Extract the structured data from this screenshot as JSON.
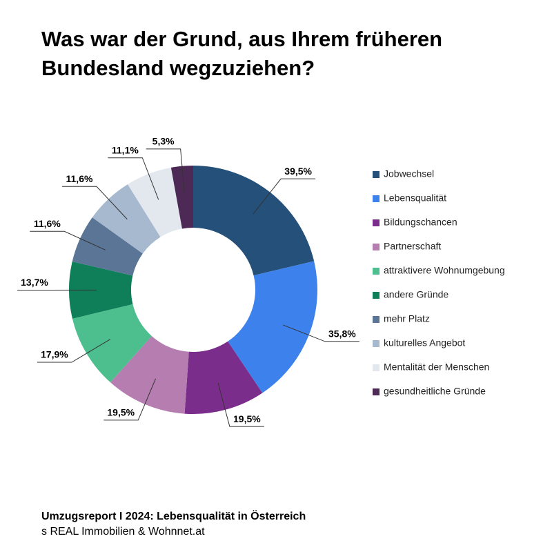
{
  "chart_data": {
    "type": "donut",
    "title": "Was war der Grund, aus Ihrem früheren Bundesland wegzuziehen?",
    "categories": [
      "Jobwechsel",
      "Lebensqualität",
      "Bildungschancen",
      "Partnerschaft",
      "attraktivere Wohnumgebung",
      "andere Gründe",
      "mehr Platz",
      "kulturelles Angebot",
      "Mentalität der Menschen",
      "gesundheitliche Gründe"
    ],
    "values": [
      39.5,
      35.8,
      19.5,
      19.5,
      17.9,
      13.7,
      11.6,
      11.6,
      11.1,
      5.3
    ],
    "value_labels": [
      "39,5%",
      "35,8%",
      "19,5%",
      "19,5%",
      "17,9%",
      "13,7%",
      "11,6%",
      "11,6%",
      "11,1%",
      "5,3%"
    ],
    "colors": [
      "#24507a",
      "#3d82ec",
      "#7b2d8b",
      "#b57db0",
      "#4dbf8e",
      "#0f7f5a",
      "#5a7596",
      "#a7b9cf",
      "#e3e8ef",
      "#4c2a55"
    ],
    "legend": "right"
  },
  "footer": {
    "title": "Umzugsreport I 2024: Lebensqualität in Österreich",
    "source": "s REAL Immobilien & Wohnnet.at"
  }
}
